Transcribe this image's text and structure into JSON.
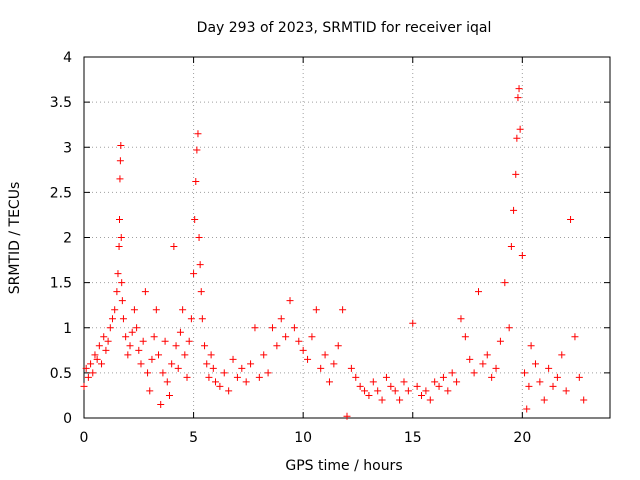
{
  "chart_data": {
    "type": "scatter",
    "title": "Day 293 of 2023, SRMTID for receiver iqal",
    "xlabel": "GPS time / hours",
    "ylabel": "SRMTID / TECUs",
    "xlim": [
      0,
      24
    ],
    "ylim": [
      0,
      4
    ],
    "xticks": [
      0,
      5,
      10,
      15,
      20
    ],
    "xtick_labels": [
      "0",
      "5",
      "10",
      "15",
      "20"
    ],
    "yticks": [
      0,
      0.5,
      1,
      1.5,
      2,
      2.5,
      3,
      3.5,
      4
    ],
    "ytick_labels": [
      "0",
      "0.5",
      "1",
      "1.5",
      "2",
      "2.5",
      "3",
      "3.5",
      "4"
    ],
    "grid": true,
    "marker": "+",
    "color": "#ff0000",
    "series": [
      {
        "name": "SRMTID",
        "x": [
          0.0,
          0.1,
          0.2,
          0.3,
          0.4,
          0.5,
          0.6,
          0.7,
          0.8,
          0.9,
          1.0,
          1.1,
          1.2,
          1.3,
          1.4,
          1.5,
          1.55,
          1.6,
          1.62,
          1.64,
          1.66,
          1.68,
          1.7,
          1.72,
          1.75,
          1.8,
          1.9,
          2.0,
          2.1,
          2.2,
          2.3,
          2.4,
          2.5,
          2.6,
          2.7,
          2.8,
          2.9,
          3.0,
          3.1,
          3.2,
          3.3,
          3.4,
          3.5,
          3.6,
          3.7,
          3.8,
          3.9,
          4.0,
          4.1,
          4.2,
          4.3,
          4.4,
          4.5,
          4.6,
          4.7,
          4.8,
          4.9,
          5.0,
          5.05,
          5.1,
          5.15,
          5.2,
          5.25,
          5.3,
          5.35,
          5.4,
          5.5,
          5.6,
          5.7,
          5.8,
          5.9,
          6.0,
          6.2,
          6.4,
          6.6,
          6.8,
          7.0,
          7.2,
          7.4,
          7.6,
          7.8,
          8.0,
          8.2,
          8.4,
          8.6,
          8.8,
          9.0,
          9.2,
          9.4,
          9.6,
          9.8,
          10.0,
          10.2,
          10.4,
          10.6,
          10.8,
          11.0,
          11.2,
          11.4,
          11.6,
          11.8,
          12.0,
          12.2,
          12.4,
          12.6,
          12.8,
          13.0,
          13.2,
          13.4,
          13.6,
          13.8,
          14.0,
          14.2,
          14.4,
          14.6,
          14.8,
          15.0,
          15.2,
          15.4,
          15.6,
          15.8,
          16.0,
          16.2,
          16.4,
          16.6,
          16.8,
          17.0,
          17.2,
          17.4,
          17.6,
          17.8,
          18.0,
          18.2,
          18.4,
          18.6,
          18.8,
          19.0,
          19.2,
          19.4,
          19.5,
          19.6,
          19.7,
          19.75,
          19.8,
          19.85,
          19.9,
          20.0,
          20.1,
          20.2,
          20.3,
          20.4,
          20.6,
          20.8,
          21.0,
          21.2,
          21.4,
          21.6,
          21.8,
          22.0,
          22.2,
          22.4,
          22.6,
          22.8
        ],
        "y": [
          0.35,
          0.55,
          0.45,
          0.6,
          0.5,
          0.7,
          0.65,
          0.8,
          0.6,
          0.9,
          0.75,
          0.85,
          1.0,
          1.1,
          1.2,
          1.4,
          1.6,
          1.9,
          2.2,
          2.65,
          2.85,
          3.02,
          2.0,
          1.5,
          1.3,
          1.1,
          0.9,
          0.7,
          0.8,
          0.95,
          1.2,
          1.0,
          0.75,
          0.6,
          0.85,
          1.4,
          0.5,
          0.3,
          0.65,
          0.9,
          1.2,
          0.7,
          0.15,
          0.5,
          0.85,
          0.4,
          0.25,
          0.6,
          1.9,
          0.8,
          0.55,
          0.95,
          1.2,
          0.7,
          0.45,
          0.85,
          1.1,
          1.6,
          2.2,
          2.62,
          2.97,
          3.15,
          2.0,
          1.7,
          1.4,
          1.1,
          0.8,
          0.6,
          0.45,
          0.7,
          0.55,
          0.4,
          0.35,
          0.5,
          0.3,
          0.65,
          0.45,
          0.55,
          0.4,
          0.6,
          1.0,
          0.45,
          0.7,
          0.5,
          1.0,
          0.8,
          1.1,
          0.9,
          1.3,
          1.0,
          0.85,
          0.75,
          0.65,
          0.9,
          1.2,
          0.55,
          0.7,
          0.4,
          0.6,
          0.8,
          1.2,
          0.02,
          0.55,
          0.45,
          0.35,
          0.3,
          0.25,
          0.4,
          0.3,
          0.2,
          0.45,
          0.35,
          0.3,
          0.2,
          0.4,
          0.3,
          1.05,
          0.35,
          0.25,
          0.3,
          0.2,
          0.4,
          0.35,
          0.45,
          0.3,
          0.5,
          0.4,
          1.1,
          0.9,
          0.65,
          0.5,
          1.4,
          0.6,
          0.7,
          0.45,
          0.55,
          0.85,
          1.5,
          1.0,
          1.9,
          2.3,
          2.7,
          3.1,
          3.55,
          3.65,
          3.2,
          1.8,
          0.5,
          0.1,
          0.35,
          0.8,
          0.6,
          0.4,
          0.2,
          0.55,
          0.35,
          0.45,
          0.7,
          0.3,
          2.2,
          0.9,
          0.45,
          0.2
        ]
      }
    ]
  }
}
